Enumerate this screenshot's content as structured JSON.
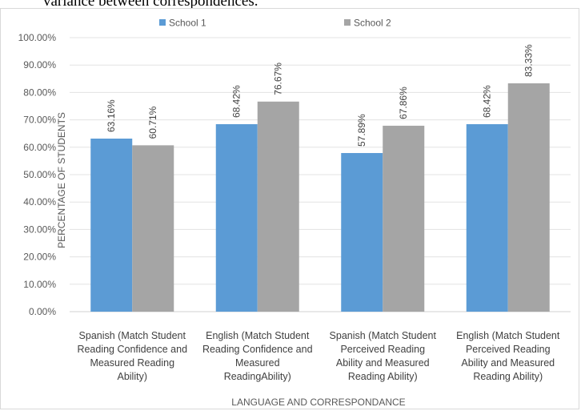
{
  "page": {
    "caption": "variance between correspondences."
  },
  "chart_data": {
    "type": "bar",
    "title": "",
    "xlabel": "LANGUAGE AND CORRESPONDANCE",
    "ylabel": "PERCENTAGE OF STUDENTS",
    "ylim": [
      0,
      100
    ],
    "y_ticks": [
      "0.00%",
      "10.00%",
      "20.00%",
      "30.00%",
      "40.00%",
      "50.00%",
      "60.00%",
      "70.00%",
      "80.00%",
      "90.00%",
      "100.00%"
    ],
    "grid": true,
    "legend_position": "top",
    "categories": [
      [
        "Spanish (Match Student",
        "Reading Confidence and",
        "Measured Reading",
        "Ability)"
      ],
      [
        "English (Match Student",
        "Reading Confidence and",
        "Measured",
        "ReadingAbility)"
      ],
      [
        "Spanish (Match Student",
        "Perceived Reading",
        "Ability and Measured",
        "Reading Ability)"
      ],
      [
        "English (Match Student",
        "Perceived Reading",
        "Ability and Measured",
        "Reading Ability)"
      ]
    ],
    "series": [
      {
        "name": "School 1",
        "color": "#5b9bd5",
        "values": [
          63.16,
          68.42,
          57.89,
          68.42
        ],
        "labels": [
          "63.16%",
          "68.42%",
          "57.89%",
          "68.42%"
        ]
      },
      {
        "name": "School 2",
        "color": "#a5a5a5",
        "values": [
          60.71,
          76.67,
          67.86,
          83.33
        ],
        "labels": [
          "60.71%",
          "76.67%",
          "67.86%",
          "83.33%"
        ]
      }
    ]
  }
}
